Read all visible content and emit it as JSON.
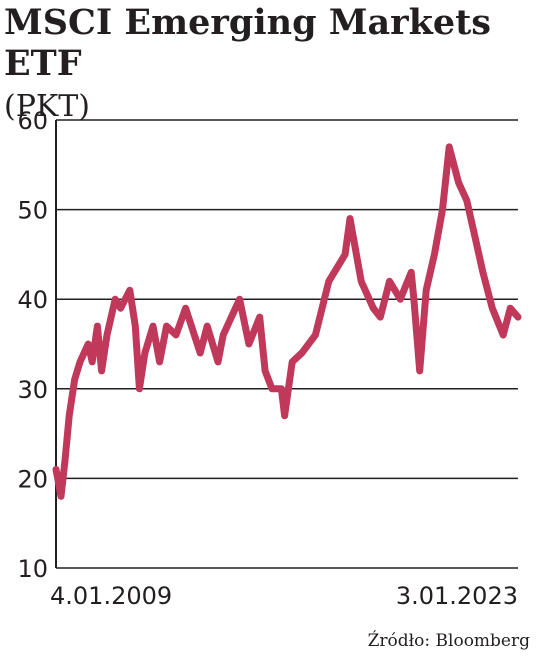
{
  "title": {
    "main": "MSCI Emerging Markets ETF",
    "unit": "(PKT)"
  },
  "source": "Źródło: Bloomberg",
  "colors": {
    "line": "#c0395a",
    "grid": "#231f20",
    "text": "#231f20"
  },
  "chart_data": {
    "type": "line",
    "title": "MSCI Emerging Markets ETF",
    "ylabel": "PKT",
    "ylim": [
      10,
      60
    ],
    "yticks": [
      10,
      20,
      30,
      40,
      50,
      60
    ],
    "x_tick_labels": [
      "4.01.2009",
      "3.01.2023"
    ],
    "xlim": [
      "2009-01-04",
      "2023-03-31"
    ],
    "grid": true,
    "series": [
      {
        "x": [
          "2009-01-04",
          "2009-03-01",
          "2009-04-15",
          "2009-06-01",
          "2009-08-01",
          "2009-10-01",
          "2010-01-01",
          "2010-02-15",
          "2010-04-15",
          "2010-06-01",
          "2010-08-01",
          "2010-11-01",
          "2011-01-01",
          "2011-04-15",
          "2011-06-15",
          "2011-08-01",
          "2011-10-01",
          "2012-01-01",
          "2012-03-15",
          "2012-06-01",
          "2012-09-15",
          "2013-01-01",
          "2013-06-15",
          "2013-09-01",
          "2014-01-01",
          "2014-03-01",
          "2014-09-01",
          "2014-12-15",
          "2015-04-15",
          "2015-06-15",
          "2015-09-01",
          "2015-12-15",
          "2016-01-20",
          "2016-04-15",
          "2016-08-01",
          "2017-01-01",
          "2017-06-01",
          "2017-12-01",
          "2018-01-26",
          "2018-06-01",
          "2018-10-15",
          "2019-01-01",
          "2019-04-15",
          "2019-08-15",
          "2019-12-15",
          "2020-01-15",
          "2020-03-20",
          "2020-06-01",
          "2020-09-01",
          "2020-12-01",
          "2021-02-15",
          "2021-06-01",
          "2021-09-01",
          "2021-12-01",
          "2022-03-01",
          "2022-06-15",
          "2022-10-15",
          "2023-01-03",
          "2023-03-31"
        ],
        "y": [
          21,
          18,
          22,
          27,
          31,
          33,
          35,
          33,
          37,
          32,
          36,
          40,
          39,
          41,
          37,
          30,
          34,
          37,
          33,
          37,
          36,
          39,
          34,
          37,
          33,
          36,
          40,
          35,
          38,
          32,
          30,
          30,
          27,
          33,
          34,
          36,
          42,
          45,
          49,
          42,
          39,
          38,
          42,
          40,
          43,
          40,
          32,
          41,
          45,
          50,
          57,
          53,
          51,
          47,
          43,
          39,
          36,
          39,
          38
        ]
      }
    ]
  }
}
